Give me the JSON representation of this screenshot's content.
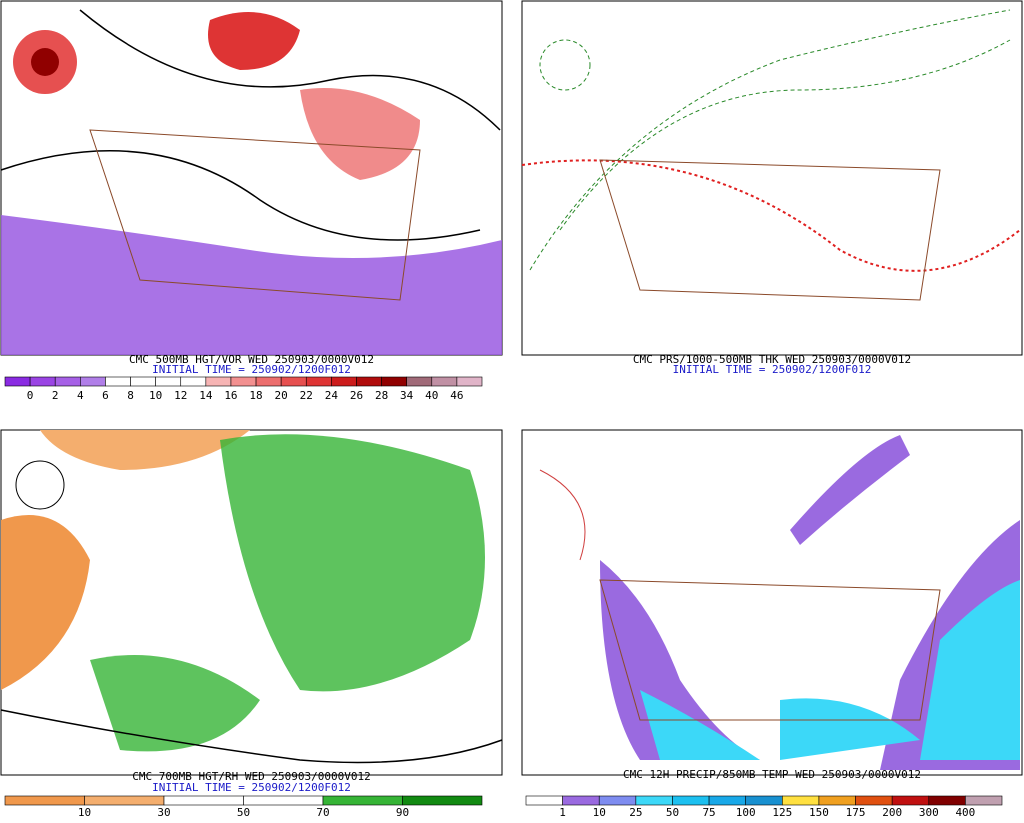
{
  "panels": [
    {
      "caption": "CMC 500MB HGT/VOR WED 250903/0000V012",
      "initial": "INITIAL TIME = 250902/1200F012",
      "colorbar": {
        "labels": [
          "0",
          "2",
          "4",
          "6",
          "8",
          "10",
          "12",
          "14",
          "16",
          "18",
          "20",
          "22",
          "24",
          "26",
          "28",
          "34",
          "40",
          "46"
        ],
        "colors": [
          "#8a2be2",
          "#9a44e4",
          "#a660e6",
          "#b07ee8",
          "#ffffff",
          "#ffffff",
          "#ffffff",
          "#ffffff",
          "#f6b4b4",
          "#f29090",
          "#ec6e6e",
          "#e65050",
          "#de3434",
          "#cc1c1c",
          "#b00c0c",
          "#900000",
          "#a06a78",
          "#c090a4",
          "#e0b4c8"
        ]
      }
    },
    {
      "caption": "CMC PRS/1000-500MB THK WED 250903/0000V012",
      "initial": "INITIAL TIME = 250902/1200F012"
    },
    {
      "caption": "CMC 700MB HGT/RH WED 250903/0000V012",
      "initial": "INITIAL TIME = 250902/1200F012",
      "colorbar": {
        "labels": [
          "10",
          "30",
          "50",
          "70",
          "90"
        ],
        "colors": [
          "#f0984c",
          "#f4ae6e",
          "#ffffff",
          "#ffffff",
          "#36b436",
          "#128a12"
        ]
      }
    },
    {
      "caption": "CMC 12H PRECIP/850MB TEMP WED 250903/0000V012",
      "colorbar": {
        "labels": [
          "1",
          "10",
          "25",
          "50",
          "75",
          "100",
          "125",
          "150",
          "175",
          "200",
          "300",
          "400"
        ],
        "colors": [
          "#ffffff",
          "#9a6ae0",
          "#7e8cf0",
          "#3cd8f8",
          "#1cc0f0",
          "#18a8e8",
          "#1890d0",
          "#ffe040",
          "#f0a020",
          "#e05010",
          "#c01010",
          "#800000",
          "#c0a0b0"
        ]
      }
    }
  ]
}
